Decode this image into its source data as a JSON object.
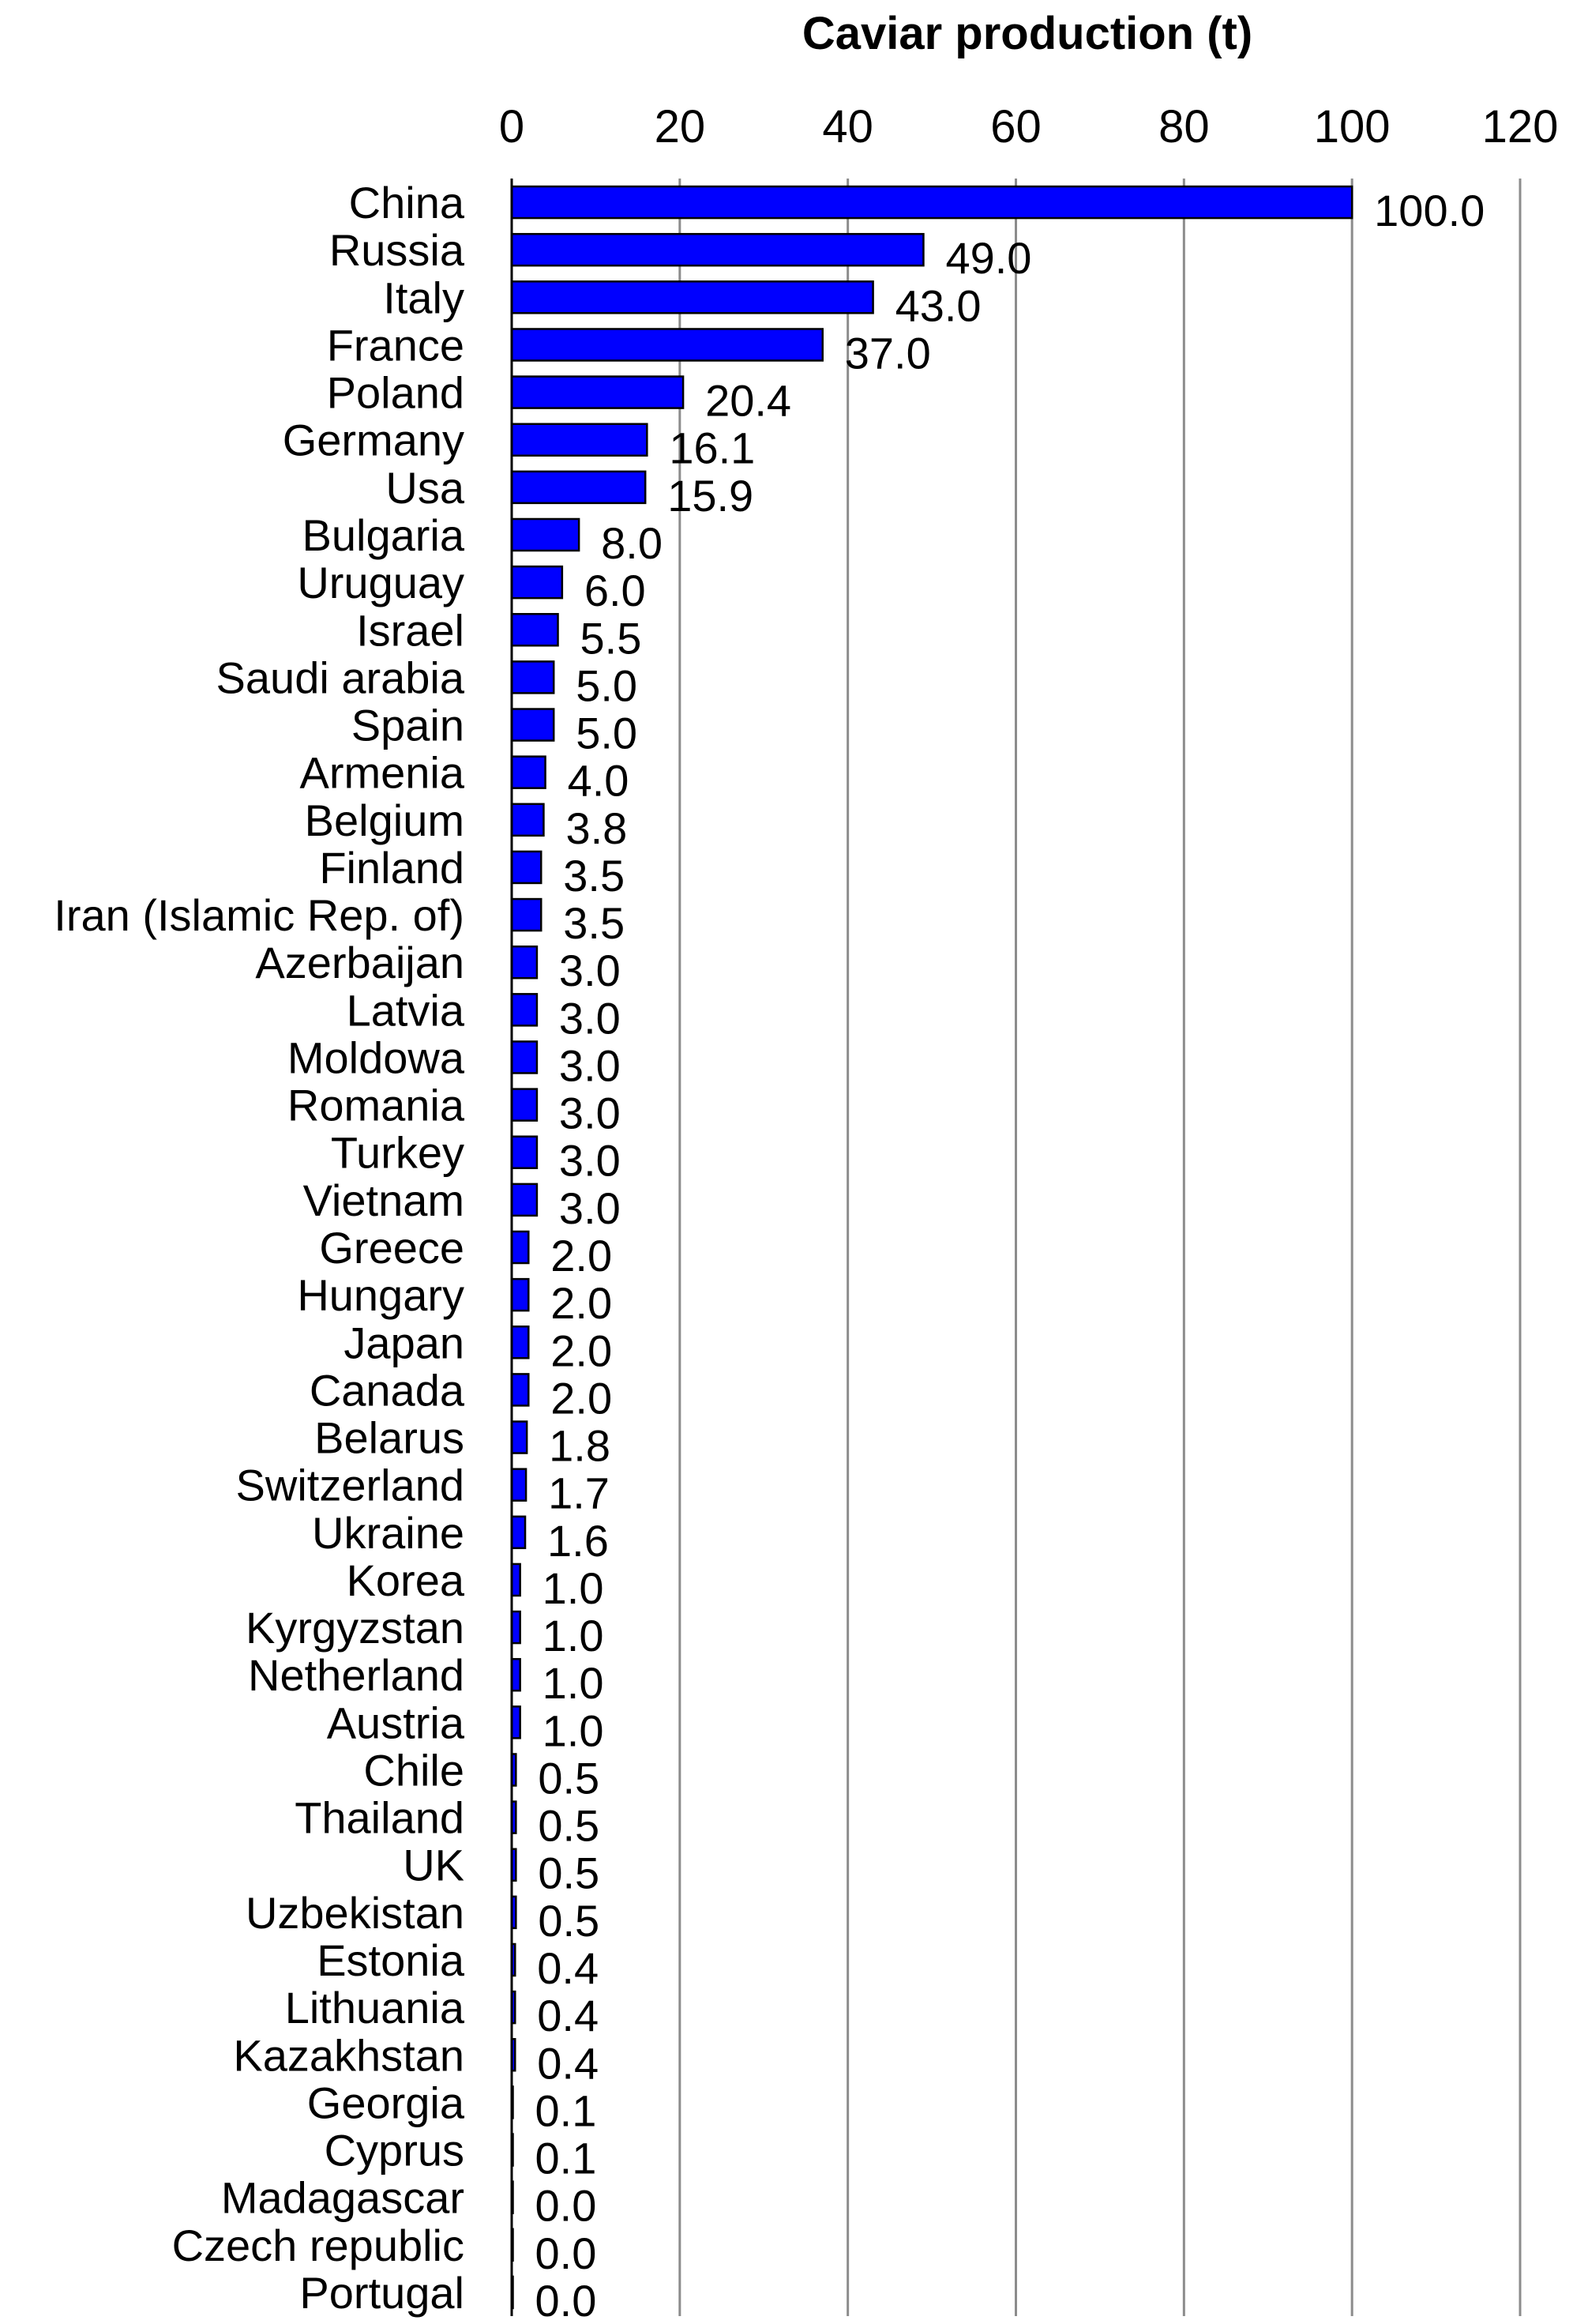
{
  "chart_data": {
    "type": "bar",
    "orientation": "horizontal",
    "title": "Caviar production (t)",
    "xlim": [
      0,
      120
    ],
    "xticks": [
      0,
      20,
      40,
      60,
      80,
      100,
      120
    ],
    "grid": true,
    "bar_color": "#0000ff",
    "x_axis_position": "top",
    "categories": [
      "China",
      "Russia",
      "Italy",
      "France",
      "Poland",
      "Germany",
      "Usa",
      "Bulgaria",
      "Uruguay",
      "Israel",
      "Saudi arabia",
      "Spain",
      "Armenia",
      "Belgium",
      "Finland",
      "Iran (Islamic Rep. of)",
      "Azerbaijan",
      "Latvia",
      "Moldowa",
      "Romania",
      "Turkey",
      "Vietnam",
      "Greece",
      "Hungary",
      "Japan",
      "Canada",
      "Belarus",
      "Switzerland",
      "Ukraine",
      "Korea",
      "Kyrgyzstan",
      "Netherland",
      "Austria",
      "Chile",
      "Thailand",
      "UK",
      "Uzbekistan",
      "Estonia",
      "Lithuania",
      "Kazakhstan",
      "Georgia",
      "Cyprus",
      "Madagascar",
      "Czech republic",
      "Portugal"
    ],
    "values": [
      100.0,
      49.0,
      43.0,
      37.0,
      20.4,
      16.1,
      15.9,
      8.0,
      6.0,
      5.5,
      5.0,
      5.0,
      4.0,
      3.8,
      3.5,
      3.5,
      3.0,
      3.0,
      3.0,
      3.0,
      3.0,
      3.0,
      2.0,
      2.0,
      2.0,
      2.0,
      1.8,
      1.7,
      1.6,
      1.0,
      1.0,
      1.0,
      1.0,
      0.5,
      0.5,
      0.5,
      0.5,
      0.4,
      0.4,
      0.4,
      0.1,
      0.1,
      0.0,
      0.0,
      0.0
    ],
    "value_labels": [
      "100.0",
      "49.0",
      "43.0",
      "37.0",
      "20.4",
      "16.1",
      "15.9",
      "8.0",
      "6.0",
      "5.5",
      "5.0",
      "5.0",
      "4.0",
      "3.8",
      "3.5",
      "3.5",
      "3.0",
      "3.0",
      "3.0",
      "3.0",
      "3.0",
      "3.0",
      "2.0",
      "2.0",
      "2.0",
      "2.0",
      "1.8",
      "1.7",
      "1.6",
      "1.0",
      "1.0",
      "1.0",
      "1.0",
      "0.5",
      "0.5",
      "0.5",
      "0.5",
      "0.4",
      "0.4",
      "0.4",
      "0.1",
      "0.1",
      "0.0",
      "0.0",
      "0.0"
    ]
  }
}
